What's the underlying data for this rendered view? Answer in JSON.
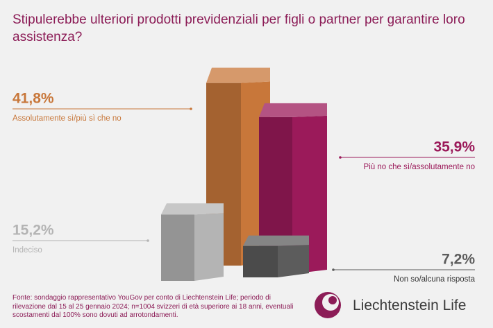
{
  "chart_data": {
    "type": "bar",
    "title": "Stipulerebbe ulteriori prodotti previdenziali per figli o partner per garantire loro assistenza?",
    "categories": [
      "Assolutamente sì/più sì che no",
      "Più no che sì/assolutamente no",
      "Indeciso",
      "Non so/alcuna risposta"
    ],
    "values": [
      41.8,
      35.9,
      15.2,
      7.2
    ],
    "value_labels": [
      "41,8%",
      "35,9%",
      "15,2%",
      "7,2%"
    ],
    "colors": [
      "#c8773a",
      "#9b1a5a",
      "#b4b4b4",
      "#5c5c5c"
    ],
    "source": "Fonte: sondaggio rappresentativo YouGov per conto di Liechtenstein Life; periodo di rilevazione dal 15 al 25 gennaio 2024; n=1004 svizzeri di età superiore ai 18 anni, eventuali scostamenti dal 100% sono dovuti ad arrotondamenti.",
    "brand": "Liechtenstein Life"
  }
}
